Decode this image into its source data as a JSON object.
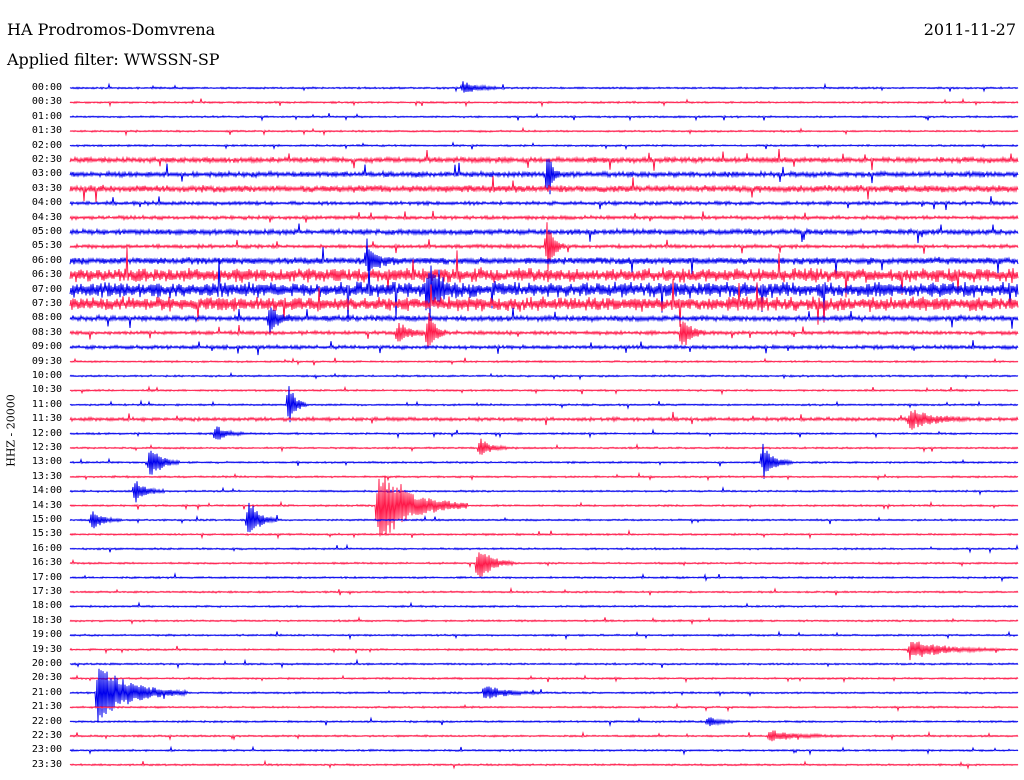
{
  "header": {
    "station": "HA Prodromos-Domvrena",
    "date": "2011-11-27",
    "filter": "Applied filter: WWSSN-SP"
  },
  "channel_label": "HHZ - 20000",
  "colors": {
    "even_trace": "#0000ee",
    "odd_trace": "#ff1a4a"
  },
  "chart_data": {
    "type": "line",
    "title": "HA Prodromos-Domvrena",
    "subtitle": "Applied filter: WWSSN-SP",
    "ylabel": "HHZ - 20000",
    "row_labels": [
      "00:00",
      "00:30",
      "01:00",
      "01:30",
      "02:00",
      "02:30",
      "03:00",
      "03:30",
      "04:00",
      "04:30",
      "05:00",
      "05:30",
      "06:00",
      "06:30",
      "07:00",
      "07:30",
      "08:00",
      "08:30",
      "09:00",
      "09:30",
      "10:00",
      "10:30",
      "11:00",
      "11:30",
      "12:00",
      "12:30",
      "13:00",
      "13:30",
      "14:00",
      "14:30",
      "15:00",
      "15:30",
      "16:00",
      "16:30",
      "17:00",
      "17:30",
      "18:00",
      "18:30",
      "19:00",
      "19:30",
      "20:00",
      "20:30",
      "21:00",
      "21:30",
      "22:00",
      "22:30",
      "23:00",
      "23:30"
    ],
    "noise": [
      1,
      1,
      1,
      1,
      1,
      3,
      3,
      4,
      2,
      2,
      3,
      2,
      4,
      8,
      9,
      8,
      3,
      2,
      2,
      1,
      1,
      1,
      1,
      2,
      1,
      1,
      1,
      1,
      1,
      1,
      1,
      1,
      1,
      1,
      1,
      1,
      1,
      1,
      1,
      1,
      1,
      1,
      1,
      1,
      1,
      1,
      1,
      1
    ],
    "events": [
      {
        "row": 0,
        "x": 463,
        "amp": 6,
        "width": 14
      },
      {
        "row": 6,
        "x": 548,
        "amp": 30,
        "width": 4
      },
      {
        "row": 11,
        "x": 547,
        "amp": 30,
        "width": 6
      },
      {
        "row": 12,
        "x": 367,
        "amp": 12,
        "width": 12
      },
      {
        "row": 14,
        "x": 428,
        "amp": 30,
        "width": 8
      },
      {
        "row": 17,
        "x": 428,
        "amp": 28,
        "width": 6
      },
      {
        "row": 17,
        "x": 398,
        "amp": 12,
        "width": 10
      },
      {
        "row": 17,
        "x": 682,
        "amp": 18,
        "width": 8
      },
      {
        "row": 16,
        "x": 270,
        "amp": 14,
        "width": 8
      },
      {
        "row": 22,
        "x": 289,
        "amp": 22,
        "width": 6
      },
      {
        "row": 23,
        "x": 910,
        "amp": 10,
        "width": 20
      },
      {
        "row": 24,
        "x": 216,
        "amp": 8,
        "width": 10
      },
      {
        "row": 26,
        "x": 150,
        "amp": 18,
        "width": 10
      },
      {
        "row": 26,
        "x": 763,
        "amp": 18,
        "width": 10
      },
      {
        "row": 25,
        "x": 480,
        "amp": 10,
        "width": 10
      },
      {
        "row": 28,
        "x": 135,
        "amp": 12,
        "width": 10
      },
      {
        "row": 29,
        "x": 378,
        "amp": 40,
        "width": 30
      },
      {
        "row": 30,
        "x": 248,
        "amp": 20,
        "width": 10
      },
      {
        "row": 30,
        "x": 92,
        "amp": 10,
        "width": 10
      },
      {
        "row": 33,
        "x": 478,
        "amp": 20,
        "width": 12
      },
      {
        "row": 39,
        "x": 910,
        "amp": 10,
        "width": 30
      },
      {
        "row": 42,
        "x": 98,
        "amp": 30,
        "width": 30
      },
      {
        "row": 42,
        "x": 485,
        "amp": 8,
        "width": 18
      },
      {
        "row": 44,
        "x": 708,
        "amp": 5,
        "width": 10
      },
      {
        "row": 45,
        "x": 770,
        "amp": 6,
        "width": 24
      }
    ]
  }
}
